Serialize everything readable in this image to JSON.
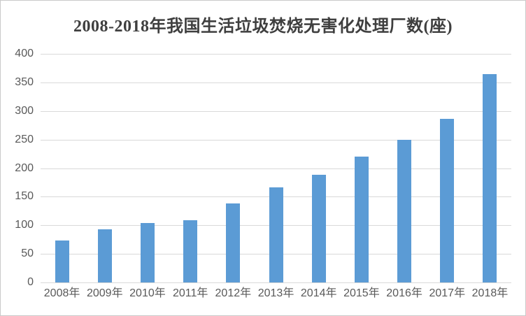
{
  "chart_data": {
    "type": "bar",
    "title": "2008-2018年我国生活垃圾焚烧无害化处理厂数(座)",
    "categories": [
      "2008年",
      "2009年",
      "2010年",
      "2011年",
      "2012年",
      "2013年",
      "2014年",
      "2015年",
      "2016年",
      "2017年",
      "2018年"
    ],
    "values": [
      74,
      93,
      104,
      109,
      138,
      166,
      188,
      220,
      249,
      286,
      364
    ],
    "xlabel": "",
    "ylabel": "",
    "ylim": [
      0,
      400
    ],
    "ytick_step": 50,
    "ytick_labels": [
      "0",
      "50",
      "100",
      "150",
      "200",
      "250",
      "300",
      "350",
      "400"
    ],
    "grid": true,
    "legend_position": "none",
    "colors": {
      "bar": "#5b9bd5",
      "gridline": "#d9d9d9",
      "axis_label": "#595959",
      "title": "#3f3f3f",
      "background": "#ffffff",
      "border": "#cacaca"
    }
  }
}
